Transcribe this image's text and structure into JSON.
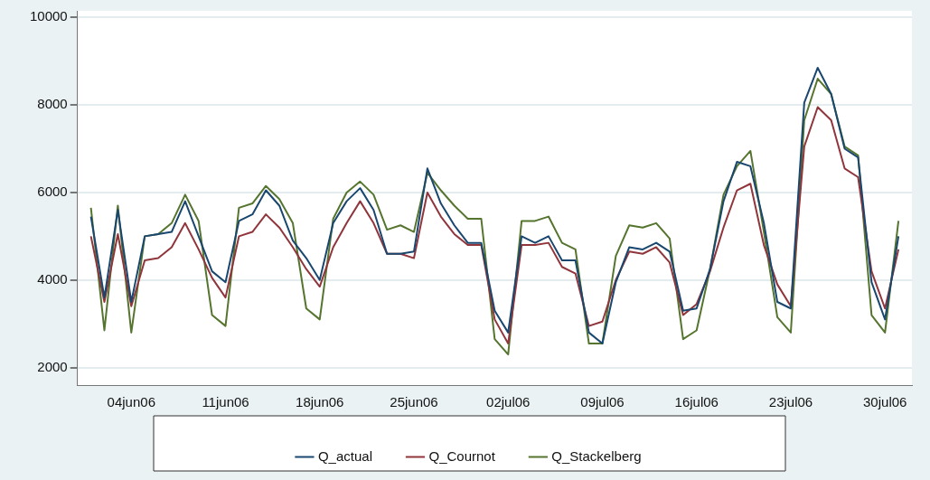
{
  "chart_data": {
    "type": "line",
    "x": [
      "--06-01",
      "--06-02",
      "--06-03",
      "--06-04",
      "--06-05",
      "--06-06",
      "--06-07",
      "--06-08",
      "--06-09",
      "--06-10",
      "--06-11",
      "--06-12",
      "--06-13",
      "--06-14",
      "--06-15",
      "--06-16",
      "--06-17",
      "--06-18",
      "--06-19",
      "--06-20",
      "--06-21",
      "--06-22",
      "--06-23",
      "--06-24",
      "--06-25",
      "--06-26",
      "--06-27",
      "--06-28",
      "--06-29",
      "--06-30",
      "--07-01",
      "--07-02",
      "--07-03",
      "--07-04",
      "--07-05",
      "--07-06",
      "--07-07",
      "--07-08",
      "--07-09",
      "--07-10",
      "--07-11",
      "--07-12",
      "--07-13",
      "--07-14",
      "--07-15",
      "--07-16",
      "--07-17",
      "--07-18",
      "--07-19",
      "--07-20",
      "--07-21",
      "--07-22",
      "--07-23",
      "--07-24",
      "--07-25",
      "--07-26",
      "--07-27",
      "--07-28",
      "--07-29",
      "--07-30",
      "--07-31"
    ],
    "series": [
      {
        "name": "Q_actual",
        "color": "#1a476f",
        "values": [
          5450,
          3600,
          5600,
          3500,
          5000,
          5050,
          5100,
          5800,
          5000,
          4200,
          3950,
          5350,
          5500,
          6050,
          5700,
          4900,
          4500,
          4000,
          5300,
          5800,
          6100,
          5600,
          4600,
          4600,
          4650,
          6550,
          5750,
          5250,
          4850,
          4850,
          3300,
          2800,
          5000,
          4850,
          5000,
          4450,
          4450,
          2800,
          2550,
          3950,
          4750,
          4700,
          4850,
          4650,
          3300,
          3350,
          4250,
          5800,
          6700,
          6600,
          5300,
          3500,
          3350,
          8050,
          8850,
          8250,
          7000,
          6800,
          3950,
          3100,
          5000
        ]
      },
      {
        "name": "Q_Cournot",
        "color": "#90353b",
        "values": [
          5000,
          3500,
          5050,
          3400,
          4450,
          4500,
          4750,
          5300,
          4700,
          4050,
          3600,
          5000,
          5100,
          5500,
          5200,
          4750,
          4250,
          3850,
          4750,
          5300,
          5800,
          5300,
          4600,
          4600,
          4500,
          6000,
          5450,
          5050,
          4800,
          4800,
          3100,
          2550,
          4800,
          4800,
          4850,
          4300,
          4150,
          2950,
          3050,
          4000,
          4650,
          4600,
          4750,
          4400,
          3200,
          3450,
          4200,
          5200,
          6050,
          6200,
          4800,
          3900,
          3400,
          7050,
          7950,
          7650,
          6550,
          6350,
          4200,
          3350,
          4700
        ]
      },
      {
        "name": "Q_Stackelberg",
        "color": "#55752f",
        "values": [
          5650,
          2850,
          5700,
          2800,
          5000,
          5050,
          5300,
          5950,
          5350,
          3200,
          2950,
          5650,
          5750,
          6150,
          5850,
          5300,
          3350,
          3100,
          5400,
          6000,
          6250,
          5950,
          5150,
          5250,
          5100,
          6450,
          6050,
          5700,
          5400,
          5400,
          2650,
          2300,
          5350,
          5350,
          5450,
          4850,
          4700,
          2550,
          2550,
          4550,
          5250,
          5200,
          5300,
          4950,
          2650,
          2850,
          4250,
          5950,
          6600,
          6950,
          5100,
          3150,
          2800,
          7650,
          8600,
          8250,
          7050,
          6850,
          3200,
          2800,
          5350
        ]
      }
    ],
    "xlim": [
      "--05-31",
      "--08-01"
    ],
    "xticks": [
      {
        "value": "--06-04",
        "label": "04jun06"
      },
      {
        "value": "--06-11",
        "label": "11jun06"
      },
      {
        "value": "--06-18",
        "label": "18jun06"
      },
      {
        "value": "--06-25",
        "label": "25jun06"
      },
      {
        "value": "--07-02",
        "label": "02jul06"
      },
      {
        "value": "--07-09",
        "label": "09jul06"
      },
      {
        "value": "--07-16",
        "label": "16jul06"
      },
      {
        "value": "--07-23",
        "label": "23jul06"
      },
      {
        "value": "--07-30",
        "label": "30jul06"
      }
    ],
    "ylim": [
      1600,
      10150
    ],
    "yticks": [
      2000,
      4000,
      6000,
      8000,
      10000
    ],
    "grid": "y",
    "legend": "bottom",
    "marker": "none",
    "line_style": "solid"
  }
}
